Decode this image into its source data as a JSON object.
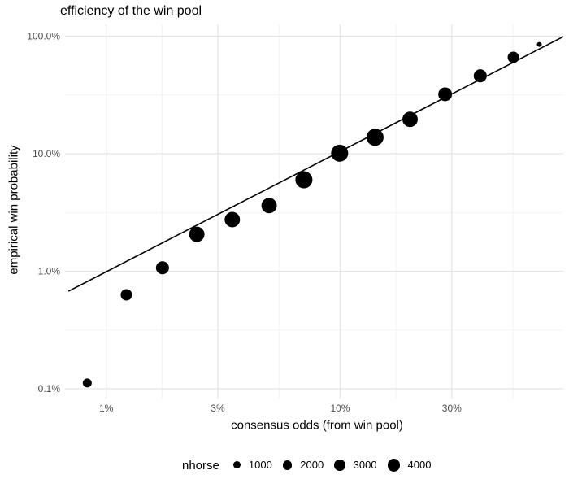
{
  "chart_data": {
    "type": "scatter",
    "title": "efficiency of the win pool",
    "xlabel": "consensus odds (from win pool)",
    "ylabel": "empirical win probability",
    "x_scale": "log",
    "y_scale": "log",
    "grid": true,
    "xlim_pct": [
      0.667,
      89.9
    ],
    "ylim_pct": [
      0.0826,
      125.9
    ],
    "x_ticks": [
      {
        "pct": 1,
        "label": "1%"
      },
      {
        "pct": 3,
        "label": "3%"
      },
      {
        "pct": 10,
        "label": "10%"
      },
      {
        "pct": 30,
        "label": "30%"
      }
    ],
    "x_minor_pct": [
      1.7321,
      5.4772,
      17.3205,
      54.7723
    ],
    "y_ticks": [
      {
        "pct": 100,
        "label": "100.0%"
      },
      {
        "pct": 10,
        "label": "10.0%"
      },
      {
        "pct": 1,
        "label": "1.0%"
      },
      {
        "pct": 0.1,
        "label": "0.1%"
      }
    ],
    "y_minor_pct": [
      31.623,
      3.1623,
      0.31623
    ],
    "points": [
      {
        "consensus_pct": 0.83,
        "empirical_pct": 0.112,
        "nhorse": 1800
      },
      {
        "consensus_pct": 1.22,
        "empirical_pct": 0.63,
        "nhorse": 3400
      },
      {
        "consensus_pct": 1.74,
        "empirical_pct": 1.07,
        "nhorse": 4700
      },
      {
        "consensus_pct": 2.44,
        "empirical_pct": 2.06,
        "nhorse": 7000
      },
      {
        "consensus_pct": 3.46,
        "empirical_pct": 2.75,
        "nhorse": 7000
      },
      {
        "consensus_pct": 4.97,
        "empirical_pct": 3.62,
        "nhorse": 7000
      },
      {
        "consensus_pct": 7.0,
        "empirical_pct": 6.0,
        "nhorse": 9000
      },
      {
        "consensus_pct": 9.95,
        "empirical_pct": 10.1,
        "nhorse": 9000
      },
      {
        "consensus_pct": 14.1,
        "empirical_pct": 13.8,
        "nhorse": 9000
      },
      {
        "consensus_pct": 19.9,
        "empirical_pct": 19.6,
        "nhorse": 7000
      },
      {
        "consensus_pct": 28.1,
        "empirical_pct": 32.0,
        "nhorse": 5400
      },
      {
        "consensus_pct": 39.7,
        "empirical_pct": 46.0,
        "nhorse": 4700
      },
      {
        "consensus_pct": 55.0,
        "empirical_pct": 66.0,
        "nhorse": 3400
      },
      {
        "consensus_pct": 71.0,
        "empirical_pct": 85.0,
        "nhorse": 250
      }
    ],
    "reference_line": {
      "x1_pct": 0.69,
      "y1_pct": 0.676,
      "x2_pct": 89.9,
      "y2_pct": 99.0
    },
    "legend": {
      "title": "nhorse",
      "position": "bottom",
      "items": [
        {
          "label": "1000",
          "nhorse": 1000
        },
        {
          "label": "2000",
          "nhorse": 2000
        },
        {
          "label": "3000",
          "nhorse": 3000
        },
        {
          "label": "4000",
          "nhorse": 4000
        }
      ]
    },
    "size_scale": {
      "a": 0.19,
      "b": 3.0
    },
    "colors": {
      "point": "#000000",
      "line": "#000000",
      "grid_major": "#e4e4e4",
      "grid_minor": "#f0f0f0",
      "tick_label": "#4d4d4d",
      "text": "#000000",
      "background": "#ffffff"
    }
  }
}
